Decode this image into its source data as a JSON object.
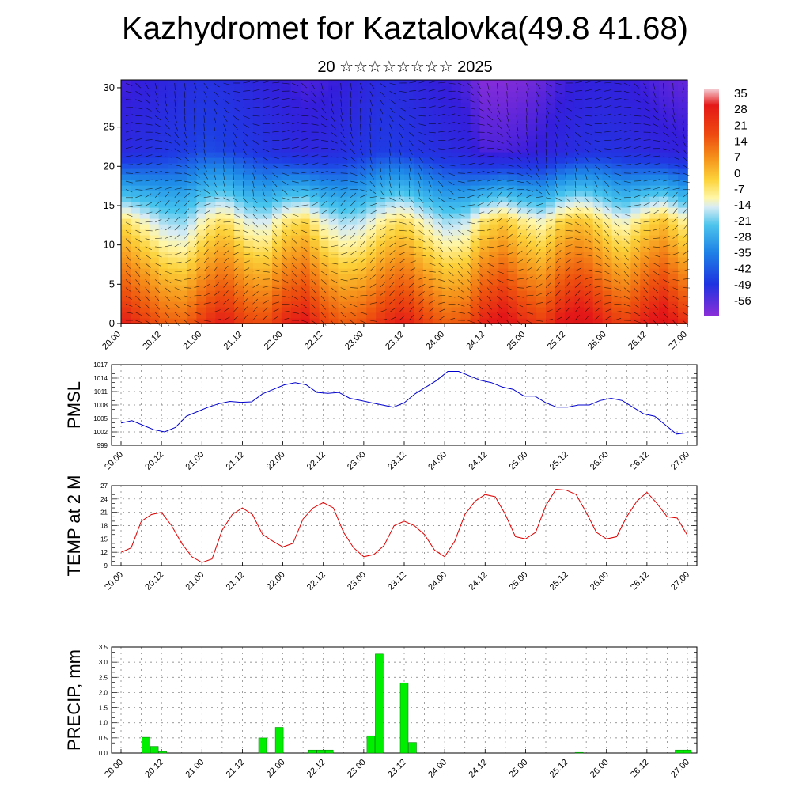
{
  "title": "Kazhydromet for Kaztalovka(49.8 41.68)",
  "subtitle": "20 ☆☆☆☆☆☆☆☆ 2025",
  "colors": {
    "pmsl_line": "#0000cc",
    "temp_line": "#dd0000",
    "precip_bar": "#00ee00",
    "precip_edge": "#007700"
  },
  "chart_data": [
    {
      "type": "heatmap",
      "title": "",
      "xlabel": "",
      "ylabel": "",
      "x_tick_labels": [
        "20.00",
        "20.12",
        "21.00",
        "21.12",
        "22.00",
        "22.12",
        "23.00",
        "23.12",
        "24.00",
        "24.12",
        "25.00",
        "25.12",
        "26.00",
        "26.12",
        "27.00"
      ],
      "y_ticks": [
        0,
        5,
        10,
        15,
        20,
        25,
        30
      ],
      "ylim": [
        0,
        31
      ],
      "colorbar_labels": [
        "35",
        "28",
        "21",
        "14",
        "7",
        "0",
        "-7",
        "-14",
        "-21",
        "-28",
        "-35",
        "-42",
        "-49",
        "-56"
      ],
      "color_range": [
        -60,
        38
      ],
      "surface_temperature": [
        21,
        16,
        11,
        10,
        18,
        22,
        15,
        13,
        20,
        23,
        15,
        11,
        13,
        19,
        22,
        16,
        11,
        12,
        21,
        25,
        19,
        16,
        24,
        26,
        20,
        15,
        21,
        26,
        19
      ],
      "tropopause_temperature": [
        -52,
        -50,
        -48,
        -46,
        -44,
        -45,
        -47,
        -49,
        -51,
        -53,
        -52,
        -50,
        -48,
        -46,
        -47,
        -49,
        -51,
        -53,
        -58,
        -58,
        -57,
        -55,
        -52,
        -50,
        -49,
        -50,
        -52,
        -54,
        -55
      ]
    },
    {
      "type": "line",
      "title": "",
      "ylabel": "PMSL",
      "x_tick_labels": [
        "20.00",
        "20.12",
        "21.00",
        "21.12",
        "22.00",
        "22.12",
        "23.00",
        "23.12",
        "24.00",
        "24.12",
        "25.00",
        "25.12",
        "26.00",
        "26.12",
        "27.00"
      ],
      "y_tick_labels": [
        "999",
        "1002",
        "1005",
        "1008",
        "1011",
        "1014",
        "1017"
      ],
      "ylim": [
        999,
        1017
      ],
      "series": [
        {
          "values": [
            1004.0,
            1004.5,
            1003.5,
            1002.5,
            1002.0,
            1003.0,
            1005.5,
            1006.5,
            1007.5,
            1008.3,
            1008.8,
            1008.6,
            1008.7,
            1010.5,
            1011.5,
            1012.5,
            1013.0,
            1012.5,
            1010.8,
            1010.6,
            1010.8,
            1009.5,
            1009.0,
            1008.5,
            1008.0,
            1007.5,
            1008.5,
            1010.5,
            1012.0,
            1013.5,
            1015.5,
            1015.5,
            1014.5,
            1013.5,
            1013.0,
            1012.0,
            1011.5,
            1010.0,
            1010.0,
            1008.5,
            1007.5,
            1007.5,
            1008.0,
            1008.0,
            1009.0,
            1009.5,
            1009.0,
            1007.5,
            1006.0,
            1005.5,
            1003.5,
            1001.5,
            1001.8
          ]
        }
      ]
    },
    {
      "type": "line",
      "title": "",
      "ylabel": "TEMP at 2 M",
      "x_tick_labels": [
        "20.00",
        "20.12",
        "21.00",
        "21.12",
        "22.00",
        "22.12",
        "23.00",
        "23.12",
        "24.00",
        "24.12",
        "25.00",
        "25.12",
        "26.00",
        "26.12",
        "27.00"
      ],
      "y_tick_labels": [
        "9",
        "12",
        "15",
        "18",
        "21",
        "24",
        "27"
      ],
      "ylim": [
        9,
        27
      ],
      "series": [
        {
          "values": [
            12.0,
            13.0,
            19.0,
            20.5,
            21.0,
            18.0,
            14.0,
            11.0,
            9.7,
            10.5,
            17.0,
            20.5,
            22.0,
            20.5,
            16.0,
            14.5,
            13.2,
            14.0,
            19.5,
            22.0,
            23.2,
            22.0,
            16.5,
            13.0,
            11.0,
            11.5,
            13.5,
            18.0,
            19.0,
            18.0,
            16.0,
            12.5,
            11.0,
            14.5,
            20.5,
            23.5,
            25.0,
            24.5,
            20.5,
            15.5,
            15.0,
            16.5,
            22.5,
            26.2,
            26.0,
            25.0,
            21.0,
            16.5,
            15.0,
            15.5,
            20.0,
            23.5,
            25.5,
            23.0,
            20.0,
            19.7,
            15.8
          ]
        }
      ]
    },
    {
      "type": "bar",
      "title": "",
      "ylabel": "PRECIP, mm",
      "x_tick_labels": [
        "20.00",
        "20.12",
        "21.00",
        "21.12",
        "22.00",
        "22.12",
        "23.00",
        "23.12",
        "24.00",
        "24.12",
        "25.00",
        "25.12",
        "26.00",
        "26.12",
        "27.00"
      ],
      "y_tick_labels": [
        "0.0",
        "0.5",
        "1.0",
        "1.5",
        "2.0",
        "2.5",
        "3.0",
        "3.5"
      ],
      "ylim": [
        0,
        3.5
      ],
      "values": [
        0,
        0,
        0,
        0.52,
        0.22,
        0.05,
        0,
        0,
        0,
        0,
        0,
        0,
        0,
        0,
        0,
        0,
        0,
        0.5,
        0,
        0.85,
        0,
        0,
        0,
        0.1,
        0.1,
        0.1,
        0,
        0,
        0,
        0,
        0.57,
        3.27,
        0,
        0,
        2.32,
        0.35,
        0,
        0,
        0,
        0,
        0,
        0,
        0,
        0,
        0,
        0,
        0,
        0,
        0,
        0,
        0,
        0,
        0,
        0,
        0,
        0.02,
        0,
        0,
        0,
        0,
        0,
        0,
        0,
        0,
        0,
        0,
        0,
        0.1,
        0.1
      ]
    }
  ]
}
